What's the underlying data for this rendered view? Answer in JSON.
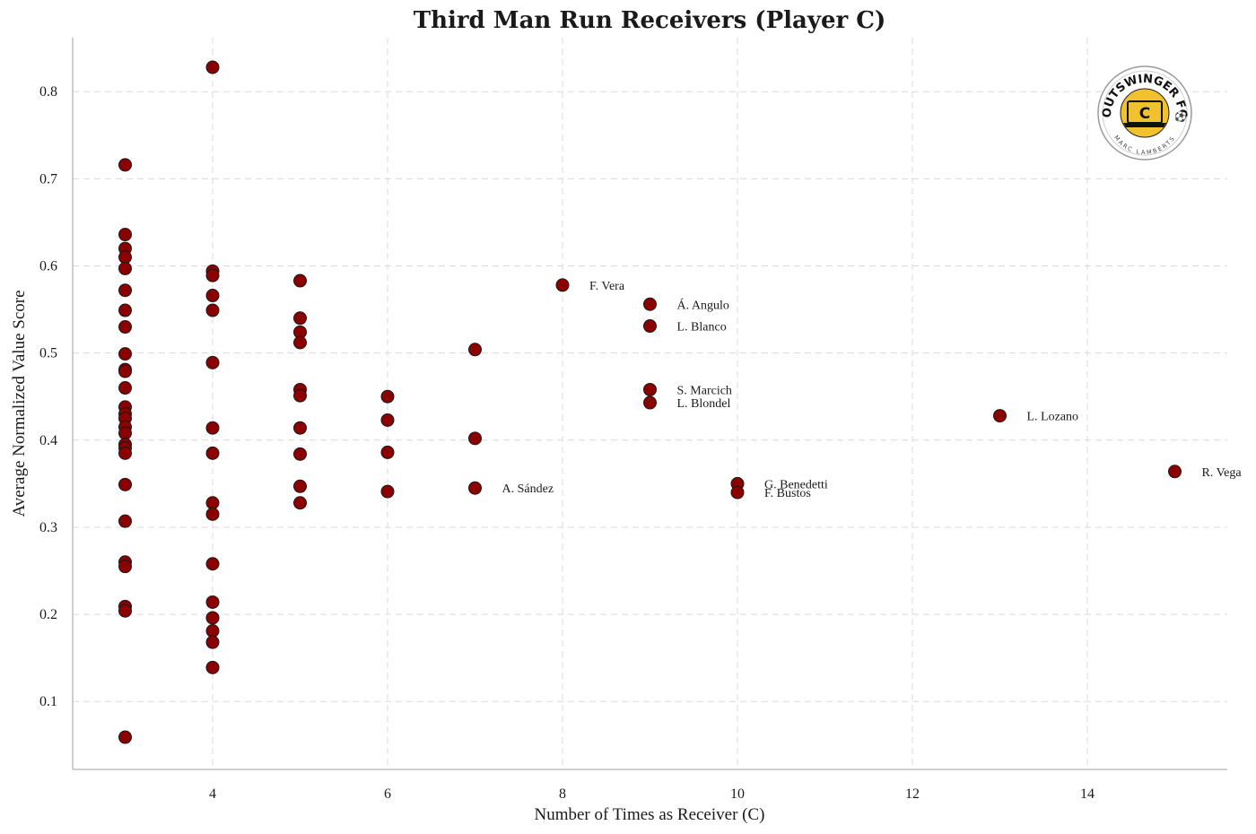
{
  "chart_data": {
    "type": "scatter",
    "title": "Third Man Run Receivers (Player C)",
    "xlabel": "Number of Times as Receiver (C)",
    "ylabel": "Average Normalized Value Score",
    "xlim": [
      2.4,
      15.6
    ],
    "ylim": [
      0.022,
      0.862
    ],
    "xticks": [
      4,
      6,
      8,
      10,
      12,
      14
    ],
    "yticks": [
      0.1,
      0.2,
      0.3,
      0.4,
      0.5,
      0.6,
      0.7,
      0.8
    ],
    "grid": true,
    "marker_color": "#8b0000",
    "points": [
      {
        "x": 3,
        "y": 0.716
      },
      {
        "x": 3,
        "y": 0.636
      },
      {
        "x": 3,
        "y": 0.62
      },
      {
        "x": 3,
        "y": 0.61
      },
      {
        "x": 3,
        "y": 0.597
      },
      {
        "x": 3,
        "y": 0.572
      },
      {
        "x": 3,
        "y": 0.549
      },
      {
        "x": 3,
        "y": 0.53
      },
      {
        "x": 3,
        "y": 0.499
      },
      {
        "x": 3,
        "y": 0.481
      },
      {
        "x": 3,
        "y": 0.479
      },
      {
        "x": 3,
        "y": 0.46
      },
      {
        "x": 3,
        "y": 0.438
      },
      {
        "x": 3,
        "y": 0.43
      },
      {
        "x": 3,
        "y": 0.425
      },
      {
        "x": 3,
        "y": 0.415
      },
      {
        "x": 3,
        "y": 0.408
      },
      {
        "x": 3,
        "y": 0.395
      },
      {
        "x": 3,
        "y": 0.391
      },
      {
        "x": 3,
        "y": 0.385
      },
      {
        "x": 3,
        "y": 0.349
      },
      {
        "x": 3,
        "y": 0.307
      },
      {
        "x": 3,
        "y": 0.26
      },
      {
        "x": 3,
        "y": 0.255
      },
      {
        "x": 3,
        "y": 0.209
      },
      {
        "x": 3,
        "y": 0.204
      },
      {
        "x": 3,
        "y": 0.059
      },
      {
        "x": 4,
        "y": 0.828
      },
      {
        "x": 4,
        "y": 0.594
      },
      {
        "x": 4,
        "y": 0.589
      },
      {
        "x": 4,
        "y": 0.566
      },
      {
        "x": 4,
        "y": 0.549
      },
      {
        "x": 4,
        "y": 0.489
      },
      {
        "x": 4,
        "y": 0.414
      },
      {
        "x": 4,
        "y": 0.385
      },
      {
        "x": 4,
        "y": 0.328
      },
      {
        "x": 4,
        "y": 0.315
      },
      {
        "x": 4,
        "y": 0.258
      },
      {
        "x": 4,
        "y": 0.214
      },
      {
        "x": 4,
        "y": 0.196
      },
      {
        "x": 4,
        "y": 0.181
      },
      {
        "x": 4,
        "y": 0.168
      },
      {
        "x": 4,
        "y": 0.139
      },
      {
        "x": 5,
        "y": 0.583
      },
      {
        "x": 5,
        "y": 0.54
      },
      {
        "x": 5,
        "y": 0.524
      },
      {
        "x": 5,
        "y": 0.512
      },
      {
        "x": 5,
        "y": 0.458
      },
      {
        "x": 5,
        "y": 0.451
      },
      {
        "x": 5,
        "y": 0.414
      },
      {
        "x": 5,
        "y": 0.384
      },
      {
        "x": 5,
        "y": 0.347
      },
      {
        "x": 5,
        "y": 0.328
      },
      {
        "x": 6,
        "y": 0.45
      },
      {
        "x": 6,
        "y": 0.423
      },
      {
        "x": 6,
        "y": 0.386
      },
      {
        "x": 6,
        "y": 0.341
      },
      {
        "x": 7,
        "y": 0.504
      },
      {
        "x": 7,
        "y": 0.402
      },
      {
        "x": 7,
        "y": 0.345,
        "label": "A. Sández"
      },
      {
        "x": 8,
        "y": 0.578,
        "label": "F. Vera"
      },
      {
        "x": 9,
        "y": 0.556,
        "label": "Á. Angulo"
      },
      {
        "x": 9,
        "y": 0.531,
        "label": "L. Blanco"
      },
      {
        "x": 9,
        "y": 0.458,
        "label": "S. Marcich"
      },
      {
        "x": 9,
        "y": 0.443,
        "label": "L. Blondel"
      },
      {
        "x": 10,
        "y": 0.35,
        "label": "G. Benedetti"
      },
      {
        "x": 10,
        "y": 0.34,
        "label": "F. Bustos"
      },
      {
        "x": 13,
        "y": 0.428,
        "label": "L. Lozano"
      },
      {
        "x": 15,
        "y": 0.364,
        "label": "R. Vega"
      }
    ]
  },
  "logo": {
    "text_top": "OUTSWINGER FC",
    "text_bottom": "MARC LAMBERTS",
    "glyph": "C",
    "fill_color": "#f2c12e",
    "icon": "laptop-icon"
  }
}
